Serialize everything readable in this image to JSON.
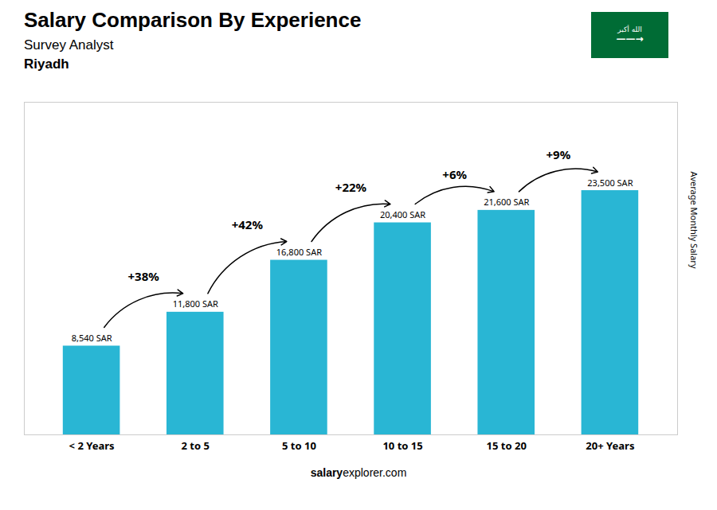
{
  "chart_data": {
    "type": "bar",
    "title": "Salary Comparison By Experience",
    "subtitle": "Survey Analyst",
    "city": "Riyadh",
    "ylabel": "Average Monthly Salary",
    "categories": [
      "< 2 Years",
      "2 to 5",
      "5 to 10",
      "10 to 15",
      "15 to 20",
      "20+ Years"
    ],
    "values": [
      8540,
      11800,
      16800,
      20400,
      21600,
      23500
    ],
    "value_labels": [
      "8,540 SAR",
      "11,800 SAR",
      "16,800 SAR",
      "20,400 SAR",
      "21,600 SAR",
      "23,500 SAR"
    ],
    "data_labels": true,
    "color": "#29b6d4",
    "ylim": [
      0,
      32000
    ],
    "yticks": [],
    "tick_labels": "x",
    "grid": false,
    "annotations": [
      "+38%",
      "+42%",
      "+22%",
      "+6%",
      "+9%"
    ],
    "footer": [
      "salary",
      "explorer.com"
    ],
    "badge": {
      "texts": [
        "الله أكبر",
        "——→"
      ],
      "color": "#006c35"
    }
  }
}
